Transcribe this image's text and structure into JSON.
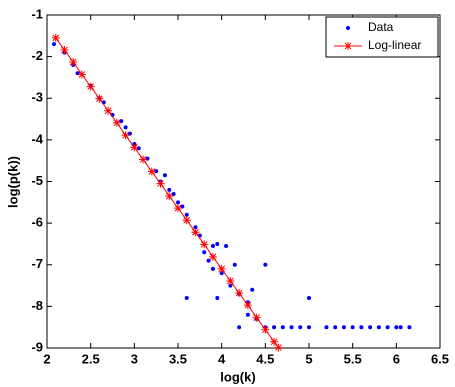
{
  "chart_data": {
    "type": "scatter-line",
    "xlabel": "log(k)",
    "ylabel": "log(p(k))",
    "xlim": [
      2,
      6.5
    ],
    "ylim": [
      -9,
      -1
    ],
    "xticks": [
      2,
      2.5,
      3,
      3.5,
      4,
      4.5,
      5,
      5.5,
      6,
      6.5
    ],
    "yticks": [
      -1,
      -2,
      -3,
      -4,
      -5,
      -6,
      -7,
      -8,
      -9
    ],
    "legend": "upper right",
    "series": [
      {
        "name": "Data",
        "color": "#0000ff",
        "kind": "scatter",
        "x": [
          2.08,
          2.2,
          2.3,
          2.35,
          2.5,
          2.6,
          2.65,
          2.75,
          2.85,
          2.9,
          2.95,
          3.0,
          3.05,
          3.15,
          3.25,
          3.3,
          3.35,
          3.4,
          3.45,
          3.5,
          3.55,
          3.6,
          3.6,
          3.7,
          3.75,
          3.8,
          3.85,
          3.9,
          3.9,
          3.95,
          3.95,
          4.0,
          4.05,
          4.1,
          4.15,
          4.2,
          4.2,
          4.3,
          4.3,
          4.35,
          4.4,
          4.5,
          4.5,
          4.6,
          4.7,
          4.8,
          4.9,
          5.0,
          5.0,
          5.2,
          5.3,
          5.4,
          5.5,
          5.6,
          5.7,
          5.8,
          5.9,
          6.0,
          6.05,
          6.15
        ],
        "values": [
          -1.7,
          -1.9,
          -2.2,
          -2.4,
          -2.7,
          -3.0,
          -3.1,
          -3.4,
          -3.55,
          -3.7,
          -3.85,
          -4.1,
          -4.2,
          -4.45,
          -4.75,
          -5.0,
          -4.85,
          -5.2,
          -5.3,
          -5.5,
          -5.6,
          -5.8,
          -7.8,
          -6.1,
          -6.3,
          -6.7,
          -6.9,
          -6.55,
          -7.1,
          -6.5,
          -7.8,
          -7.2,
          -6.55,
          -7.5,
          -7.0,
          -7.7,
          -8.5,
          -7.9,
          -8.2,
          -7.6,
          -8.3,
          -7.0,
          -8.5,
          -8.5,
          -8.5,
          -8.5,
          -8.5,
          -7.8,
          -8.5,
          -8.5,
          -8.5,
          -8.5,
          -8.5,
          -8.5,
          -8.5,
          -8.5,
          -8.5,
          -8.5,
          -8.5,
          -8.5
        ]
      },
      {
        "name": "Log-linear",
        "color": "#ff0000",
        "kind": "line",
        "x": [
          2.1,
          2.2,
          2.3,
          2.4,
          2.5,
          2.6,
          2.7,
          2.8,
          2.9,
          3.0,
          3.1,
          3.2,
          3.3,
          3.4,
          3.5,
          3.6,
          3.7,
          3.8,
          3.9,
          4.0,
          4.1,
          4.2,
          4.3,
          4.4,
          4.5,
          4.6,
          4.65
        ],
        "values": [
          -1.55,
          -1.84,
          -2.13,
          -2.43,
          -2.72,
          -3.01,
          -3.3,
          -3.59,
          -3.89,
          -4.18,
          -4.47,
          -4.76,
          -5.05,
          -5.35,
          -5.64,
          -5.93,
          -6.22,
          -6.51,
          -6.81,
          -7.1,
          -7.39,
          -7.68,
          -7.97,
          -8.27,
          -8.56,
          -8.85,
          -8.99
        ]
      }
    ]
  }
}
